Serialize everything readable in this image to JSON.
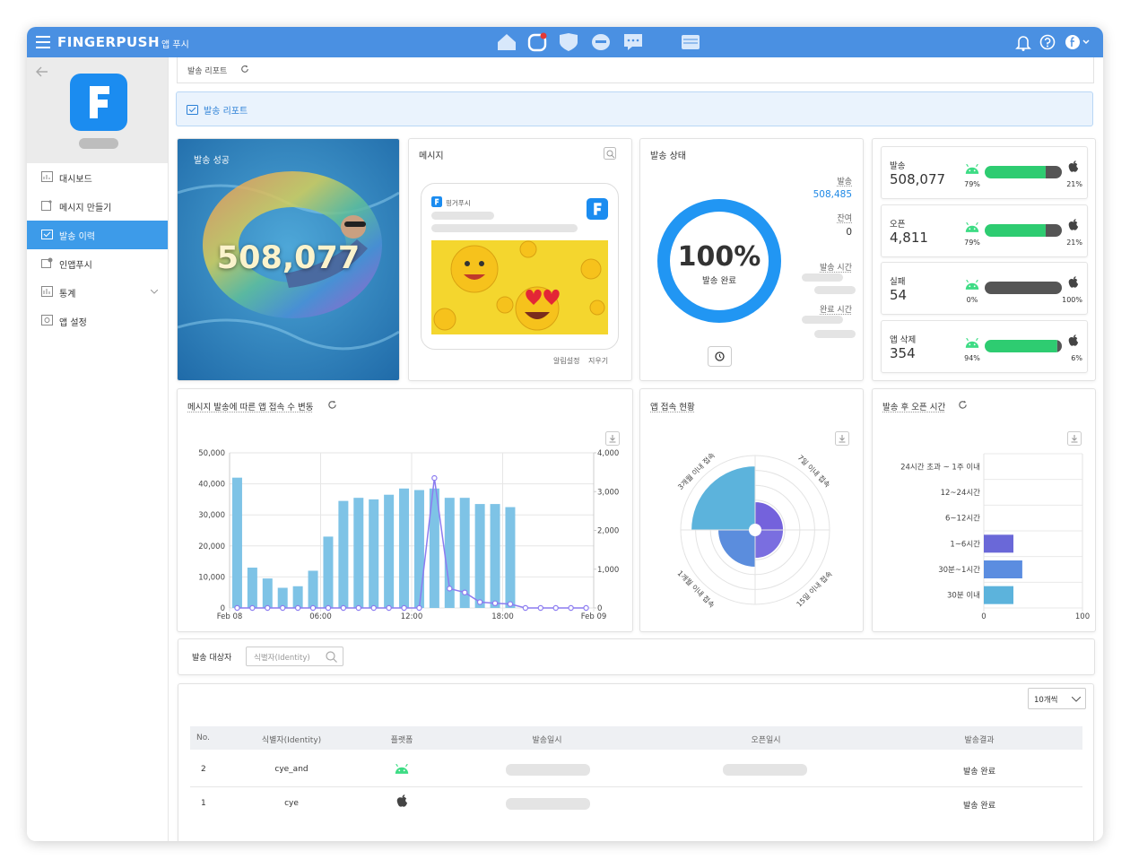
{
  "header": {
    "brand": "FINGERPUSH",
    "product": "앱 푸시"
  },
  "sidebar": {
    "menu": [
      "대시보드",
      "메시지 만들기",
      "발송 이력",
      "인앱푸시",
      "통계",
      "앱 설정"
    ]
  },
  "breadcrumb": "발송 리포트",
  "banner": "발송 리포트",
  "success_card": {
    "title": "발송 성공",
    "value": "508,077"
  },
  "message_card": {
    "title": "메시지",
    "app_name": "핑거푸시",
    "actions": [
      "알림설정",
      "지우기"
    ]
  },
  "status_card": {
    "title": "발송 상태",
    "percent": {
      "value": 100,
      "label": "100%"
    },
    "status": "발송 완료",
    "fields": [
      {
        "label": "발송",
        "value": "508,485"
      },
      {
        "label": "잔여",
        "value": "0"
      },
      {
        "label": "발송 시간"
      },
      {
        "label": "완료 시간"
      }
    ]
  },
  "stats": [
    {
      "label": "발송",
      "value": "508,077",
      "android": {
        "value": 79,
        "label": "79%"
      },
      "ios": {
        "value": 21,
        "label": "21%"
      }
    },
    {
      "label": "오픈",
      "value": "4,811",
      "android": {
        "value": 79,
        "label": "79%"
      },
      "ios": {
        "value": 21,
        "label": "21%"
      }
    },
    {
      "label": "실패",
      "value": "54",
      "android": {
        "value": 0,
        "label": "0%"
      },
      "ios": {
        "value": 100,
        "label": "100%"
      }
    },
    {
      "label": "앱 삭제",
      "value": "354",
      "android": {
        "value": 94,
        "label": "94%"
      },
      "ios": {
        "value": 6,
        "label": "6%"
      }
    }
  ],
  "chart_data": [
    {
      "type": "bar",
      "title": "메시지 발송에 따른 앱 접속 수 변동",
      "x": [
        0.5,
        1.5,
        2.5,
        3.5,
        4.5,
        5.5,
        6.5,
        7.5,
        8.5,
        9.5,
        10.5,
        11.5,
        12.5,
        13.5,
        14.5,
        15.5,
        16.5,
        17.5,
        18.5,
        19.5,
        20.5,
        21.5,
        22.5,
        23.5
      ],
      "xlim": [
        0,
        24
      ],
      "xticks": [
        {
          "value": 0,
          "label": "Feb 08"
        },
        {
          "value": 6,
          "label": "06:00"
        },
        {
          "value": 12,
          "label": "12:00"
        },
        {
          "value": 18,
          "label": "18:00"
        },
        {
          "value": 24,
          "label": "Feb 09"
        }
      ],
      "ylim": [
        0,
        50000
      ],
      "yticks": [
        0,
        {
          "value": 10000,
          "label": "10,000"
        },
        {
          "value": 20000,
          "label": "20,000"
        },
        {
          "value": 30000,
          "label": "30,000"
        },
        {
          "value": 40000,
          "label": "40,000"
        },
        {
          "value": 50000,
          "label": "50,000"
        }
      ],
      "y2lim": [
        0,
        4000
      ],
      "y2ticks": [
        0,
        {
          "value": 1000,
          "label": "1,000"
        },
        {
          "value": 2000,
          "label": "2,000"
        },
        {
          "value": 3000,
          "label": "3,000"
        },
        {
          "value": 4000,
          "label": "4,000"
        }
      ],
      "grid": true,
      "series": [
        {
          "type": "bar",
          "color": "#7ec3e6",
          "values": [
            42000,
            13000,
            9500,
            6500,
            7000,
            12000,
            23000,
            34500,
            35500,
            35000,
            36500,
            38500,
            38000,
            38500,
            35500,
            35500,
            33500,
            33500,
            32500,
            0,
            0,
            0,
            0,
            0
          ]
        },
        {
          "type": "line",
          "axis": "y2",
          "color": "#8c7cf0",
          "values": [
            0,
            0,
            0,
            0,
            0,
            0,
            0,
            0,
            0,
            0,
            0,
            0,
            0,
            3350,
            500,
            400,
            150,
            120,
            100,
            0,
            0,
            0,
            0,
            0
          ]
        }
      ]
    },
    {
      "type": "polar_area",
      "title": "앱 접속 현황",
      "categories": [
        "7일 이내 접속",
        "15일 이내 접속",
        "1개월 이내 접속",
        "3개월 이내 접속"
      ],
      "values": [
        1.9,
        1.9,
        2.5,
        4.3
      ],
      "colors": [
        "#7462dc",
        "#7a6ee0",
        "#5b8ddd",
        "#5cb3dc"
      ],
      "rlim": [
        0,
        5
      ]
    },
    {
      "type": "hbar",
      "title": "발송 후 오픈 시간",
      "categories": [
        "24시간 초과 ~ 1주 이내",
        "12~24시간",
        "6~12시간",
        "1~6시간",
        "30분~1시간",
        "30분 이내"
      ],
      "values": [
        0,
        0,
        0,
        30,
        39,
        30
      ],
      "colors": [
        "#ef6f8f",
        "#f2a65a",
        "#f5d05e",
        "#6a68d8",
        "#5b8de0",
        "#5cb3dc"
      ],
      "xlim": [
        0,
        100
      ],
      "xticks": [
        0,
        100
      ],
      "grid": true
    }
  ],
  "recipients": {
    "title": "발송 대상자",
    "search_placeholder": "식별자(Identity)"
  },
  "table": {
    "page_size": "10개씩",
    "columns": [
      "No.",
      "식별자(Identity)",
      "플랫폼",
      "발송일시",
      "오픈일시",
      "발송결과"
    ],
    "rows": [
      {
        "no": "2",
        "identity": "cye_and",
        "result": "발송 완료"
      },
      {
        "no": "1",
        "identity": "cye",
        "result": "발송 완료"
      }
    ]
  }
}
